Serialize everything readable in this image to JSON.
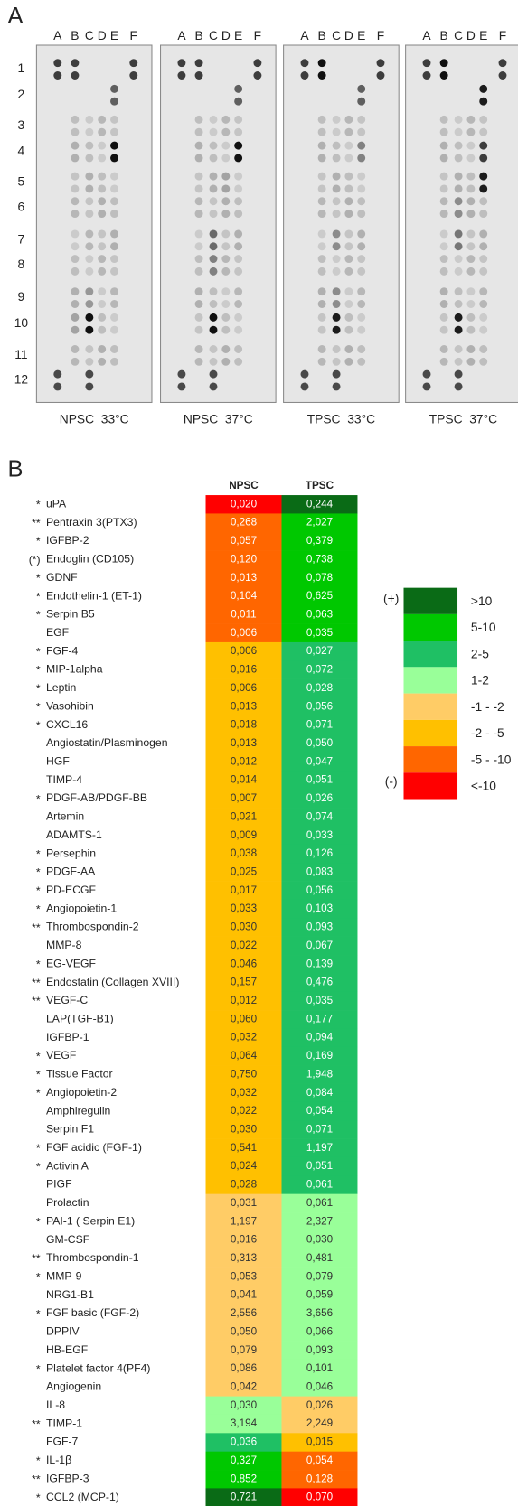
{
  "panel_a": {
    "label": "A",
    "columns": [
      "A",
      "B",
      "C",
      "D",
      "E",
      "F"
    ],
    "rows": [
      "1",
      "2",
      "3",
      "4",
      "5",
      "6",
      "7",
      "8",
      "9",
      "10",
      "11",
      "12"
    ],
    "membranes": [
      "NPSC  33°C",
      "NPSC  37°C",
      "TPSC  33°C",
      "TPSC  37°C"
    ]
  },
  "panel_b": {
    "label": "B",
    "headers": [
      "NPSC",
      "TPSC"
    ],
    "legend": {
      "plus": "(+)",
      "minus": "(-)",
      "items": [
        {
          "label": ">10",
          "color": "#0a6b16"
        },
        {
          "label": "5-10",
          "color": "#00c800"
        },
        {
          "label": "2-5",
          "color": "#1fc064"
        },
        {
          "label": "1-2",
          "color": "#99ff99"
        },
        {
          "label": "-1 - -2",
          "color": "#ffcc66"
        },
        {
          "label": "-2 - -5",
          "color": "#ffc000"
        },
        {
          "label": "-5 - -10",
          "color": "#ff6600"
        },
        {
          "label": "<-10",
          "color": "#ff0000"
        }
      ]
    },
    "rows": [
      {
        "sig": "*",
        "name": "uPA",
        "npsc": "0,020",
        "tpsc": "0,244",
        "npsc_color": "#ff0000",
        "tpsc_color": "#0a6b16"
      },
      {
        "sig": "**",
        "name": "Pentraxin 3(PTX3)",
        "npsc": "0,268",
        "tpsc": "2,027",
        "npsc_color": "#ff6600",
        "tpsc_color": "#00c800"
      },
      {
        "sig": "*",
        "name": "IGFBP-2",
        "npsc": "0,057",
        "tpsc": "0,379",
        "npsc_color": "#ff6600",
        "tpsc_color": "#00c800"
      },
      {
        "sig": "(*)",
        "name": "Endoglin (CD105)",
        "npsc": "0,120",
        "tpsc": "0,738",
        "npsc_color": "#ff6600",
        "tpsc_color": "#00c800"
      },
      {
        "sig": "*",
        "name": "GDNF",
        "npsc": "0,013",
        "tpsc": "0,078",
        "npsc_color": "#ff6600",
        "tpsc_color": "#00c800"
      },
      {
        "sig": "*",
        "name": "Endothelin-1 (ET-1)",
        "npsc": "0,104",
        "tpsc": "0,625",
        "npsc_color": "#ff6600",
        "tpsc_color": "#00c800"
      },
      {
        "sig": "*",
        "name": "Serpin B5",
        "npsc": "0,011",
        "tpsc": "0,063",
        "npsc_color": "#ff6600",
        "tpsc_color": "#00c800"
      },
      {
        "name": "EGF",
        "npsc": "0,006",
        "tpsc": "0,035",
        "npsc_color": "#ff6600",
        "tpsc_color": "#00c800"
      },
      {
        "sig": "*",
        "name": "FGF-4",
        "npsc": "0,006",
        "tpsc": "0,027",
        "npsc_color": "#ffc000",
        "tpsc_color": "#1fc064"
      },
      {
        "sig": "*",
        "name": "MIP-1alpha",
        "npsc": "0,016",
        "tpsc": "0,072",
        "npsc_color": "#ffc000",
        "tpsc_color": "#1fc064"
      },
      {
        "sig": "*",
        "name": "Leptin",
        "npsc": "0,006",
        "tpsc": "0,028",
        "npsc_color": "#ffc000",
        "tpsc_color": "#1fc064"
      },
      {
        "sig": "*",
        "name": "Vasohibin",
        "npsc": "0,013",
        "tpsc": "0,056",
        "npsc_color": "#ffc000",
        "tpsc_color": "#1fc064"
      },
      {
        "sig": "*",
        "name": "CXCL16",
        "npsc": "0,018",
        "tpsc": "0,071",
        "npsc_color": "#ffc000",
        "tpsc_color": "#1fc064"
      },
      {
        "name": "Angiostatin/Plasminogen",
        "npsc": "0,013",
        "tpsc": "0,050",
        "npsc_color": "#ffc000",
        "tpsc_color": "#1fc064"
      },
      {
        "name": "HGF",
        "npsc": "0,012",
        "tpsc": "0,047",
        "npsc_color": "#ffc000",
        "tpsc_color": "#1fc064"
      },
      {
        "name": "TIMP-4",
        "npsc": "0,014",
        "tpsc": "0,051",
        "npsc_color": "#ffc000",
        "tpsc_color": "#1fc064"
      },
      {
        "sig": "*",
        "name": "PDGF-AB/PDGF-BB",
        "npsc": "0,007",
        "tpsc": "0,026",
        "npsc_color": "#ffc000",
        "tpsc_color": "#1fc064"
      },
      {
        "name": "Artemin",
        "npsc": "0,021",
        "tpsc": "0,074",
        "npsc_color": "#ffc000",
        "tpsc_color": "#1fc064"
      },
      {
        "name": "ADAMTS-1",
        "npsc": "0,009",
        "tpsc": "0,033",
        "npsc_color": "#ffc000",
        "tpsc_color": "#1fc064"
      },
      {
        "sig": "*",
        "name": "Persephin",
        "npsc": "0,038",
        "tpsc": "0,126",
        "npsc_color": "#ffc000",
        "tpsc_color": "#1fc064"
      },
      {
        "sig": "*",
        "name": "PDGF-AA",
        "npsc": "0,025",
        "tpsc": "0,083",
        "npsc_color": "#ffc000",
        "tpsc_color": "#1fc064"
      },
      {
        "sig": "*",
        "name": "PD-ECGF",
        "npsc": "0,017",
        "tpsc": "0,056",
        "npsc_color": "#ffc000",
        "tpsc_color": "#1fc064"
      },
      {
        "sig": "*",
        "name": "Angiopoietin-1",
        "npsc": "0,033",
        "tpsc": "0,103",
        "npsc_color": "#ffc000",
        "tpsc_color": "#1fc064"
      },
      {
        "sig": "**",
        "name": "Thrombospondin-2",
        "npsc": "0,030",
        "tpsc": "0,093",
        "npsc_color": "#ffc000",
        "tpsc_color": "#1fc064"
      },
      {
        "name": "MMP-8",
        "npsc": "0,022",
        "tpsc": "0,067",
        "npsc_color": "#ffc000",
        "tpsc_color": "#1fc064"
      },
      {
        "sig": "*",
        "name": "EG-VEGF",
        "npsc": "0,046",
        "tpsc": "0,139",
        "npsc_color": "#ffc000",
        "tpsc_color": "#1fc064"
      },
      {
        "sig": "**",
        "name": "Endostatin (Collagen XVIII)",
        "npsc": "0,157",
        "tpsc": "0,476",
        "npsc_color": "#ffc000",
        "tpsc_color": "#1fc064"
      },
      {
        "sig": "**",
        "name": "VEGF-C",
        "npsc": "0,012",
        "tpsc": "0,035",
        "npsc_color": "#ffc000",
        "tpsc_color": "#1fc064"
      },
      {
        "name": "LAP(TGF-B1)",
        "npsc": "0,060",
        "tpsc": "0,177",
        "npsc_color": "#ffc000",
        "tpsc_color": "#1fc064"
      },
      {
        "name": "IGFBP-1",
        "npsc": "0,032",
        "tpsc": "0,094",
        "npsc_color": "#ffc000",
        "tpsc_color": "#1fc064"
      },
      {
        "sig": "*",
        "name": "VEGF",
        "npsc": "0,064",
        "tpsc": "0,169",
        "npsc_color": "#ffc000",
        "tpsc_color": "#1fc064"
      },
      {
        "sig": "*",
        "name": "Tissue Factor",
        "npsc": "0,750",
        "tpsc": "1,948",
        "npsc_color": "#ffc000",
        "tpsc_color": "#1fc064"
      },
      {
        "sig": "*",
        "name": "Angiopoietin-2",
        "npsc": "0,032",
        "tpsc": "0,084",
        "npsc_color": "#ffc000",
        "tpsc_color": "#1fc064"
      },
      {
        "name": "Amphiregulin",
        "npsc": "0,022",
        "tpsc": "0,054",
        "npsc_color": "#ffc000",
        "tpsc_color": "#1fc064"
      },
      {
        "name": "Serpin F1",
        "npsc": "0,030",
        "tpsc": "0,071",
        "npsc_color": "#ffc000",
        "tpsc_color": "#1fc064"
      },
      {
        "sig": "*",
        "name": "FGF acidic (FGF-1)",
        "npsc": "0,541",
        "tpsc": "1,197",
        "npsc_color": "#ffc000",
        "tpsc_color": "#1fc064"
      },
      {
        "sig": "*",
        "name": "Activin A",
        "npsc": "0,024",
        "tpsc": "0,051",
        "npsc_color": "#ffc000",
        "tpsc_color": "#1fc064"
      },
      {
        "name": "PIGF",
        "npsc": "0,028",
        "tpsc": "0,061",
        "npsc_color": "#ffc000",
        "tpsc_color": "#1fc064"
      },
      {
        "name": "Prolactin",
        "npsc": "0,031",
        "tpsc": "0,061",
        "npsc_color": "#ffcc66",
        "tpsc_color": "#99ff99"
      },
      {
        "sig": "*",
        "name": "PAI-1 ( Serpin E1)",
        "npsc": "1,197",
        "tpsc": "2,327",
        "npsc_color": "#ffcc66",
        "tpsc_color": "#99ff99"
      },
      {
        "name": "GM-CSF",
        "npsc": "0,016",
        "tpsc": "0,030",
        "npsc_color": "#ffcc66",
        "tpsc_color": "#99ff99"
      },
      {
        "sig": "**",
        "name": "Thrombospondin-1",
        "npsc": "0,313",
        "tpsc": "0,481",
        "npsc_color": "#ffcc66",
        "tpsc_color": "#99ff99"
      },
      {
        "sig": "*",
        "name": "MMP-9",
        "npsc": "0,053",
        "tpsc": "0,079",
        "npsc_color": "#ffcc66",
        "tpsc_color": "#99ff99"
      },
      {
        "name": "NRG1-B1",
        "npsc": "0,041",
        "tpsc": "0,059",
        "npsc_color": "#ffcc66",
        "tpsc_color": "#99ff99"
      },
      {
        "sig": "*",
        "name": "FGF basic (FGF-2)",
        "npsc": "2,556",
        "tpsc": "3,656",
        "npsc_color": "#ffcc66",
        "tpsc_color": "#99ff99"
      },
      {
        "name": "DPPIV",
        "npsc": "0,050",
        "tpsc": "0,066",
        "npsc_color": "#ffcc66",
        "tpsc_color": "#99ff99"
      },
      {
        "name": "HB-EGF",
        "npsc": "0,079",
        "tpsc": "0,093",
        "npsc_color": "#ffcc66",
        "tpsc_color": "#99ff99"
      },
      {
        "sig": "*",
        "name": "Platelet factor 4(PF4)",
        "npsc": "0,086",
        "tpsc": "0,101",
        "npsc_color": "#ffcc66",
        "tpsc_color": "#99ff99"
      },
      {
        "name": "Angiogenin",
        "npsc": "0,042",
        "tpsc": "0,046",
        "npsc_color": "#ffcc66",
        "tpsc_color": "#99ff99"
      },
      {
        "name": "IL-8",
        "npsc": "0,030",
        "tpsc": "0,026",
        "npsc_color": "#99ff99",
        "tpsc_color": "#ffcc66"
      },
      {
        "sig": "**",
        "name": "TIMP-1",
        "npsc": "3,194",
        "tpsc": "2,249",
        "npsc_color": "#99ff99",
        "tpsc_color": "#ffcc66"
      },
      {
        "name": "FGF-7",
        "npsc": "0,036",
        "tpsc": "0,015",
        "npsc_color": "#1fc064",
        "tpsc_color": "#ffc000"
      },
      {
        "sig": "*",
        "name": "IL-1β",
        "npsc": "0,327",
        "tpsc": "0,054",
        "npsc_color": "#00c800",
        "tpsc_color": "#ff6600"
      },
      {
        "sig": "**",
        "name": "IGFBP-3",
        "npsc": "0,852",
        "tpsc": "0,128",
        "npsc_color": "#00c800",
        "tpsc_color": "#ff6600"
      },
      {
        "sig": "*",
        "name": "CCL2 (MCP-1)",
        "npsc": "0,721",
        "tpsc": "0,070",
        "npsc_color": "#0a6b16",
        "tpsc_color": "#ff0000"
      }
    ]
  }
}
